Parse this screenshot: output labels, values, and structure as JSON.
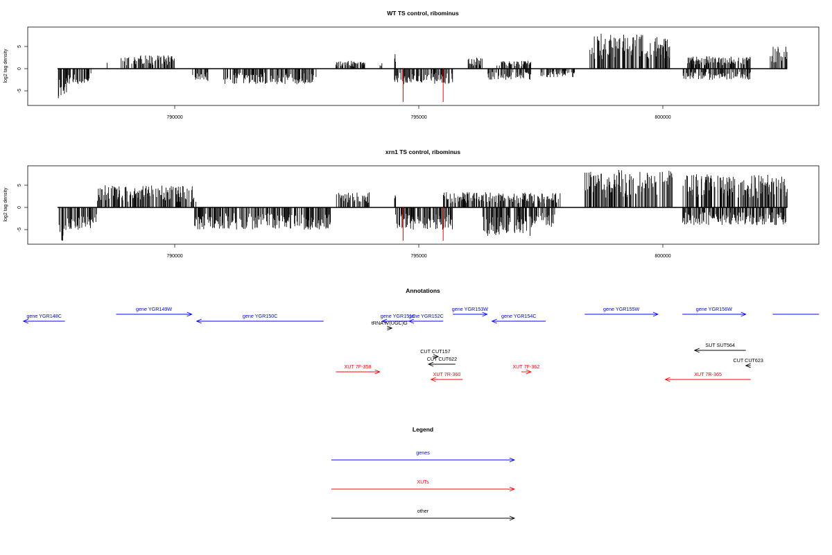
{
  "chart_data": [
    {
      "type": "bar",
      "title": "WT TS control, ribominus",
      "ylabel": "log2 tag density",
      "xlim": [
        786600,
        803200
      ],
      "ylim": [
        -8.5,
        9.5
      ],
      "x_ticks": [
        790000,
        795000,
        800000
      ],
      "y_ticks": [
        5,
        0,
        -5
      ],
      "x_tick_labels": [
        "790000",
        "795000",
        "800000"
      ],
      "y_tick_labels": [
        "5",
        "0",
        "-5"
      ],
      "plus_strand": [
        {
          "start": 788600,
          "end": 788620,
          "max": 2.5
        },
        {
          "start": 788900,
          "end": 790000,
          "max": 3.0
        },
        {
          "start": 793300,
          "end": 793900,
          "max": 1.8
        },
        {
          "start": 794200,
          "end": 794250,
          "max": 1.5
        },
        {
          "start": 794500,
          "end": 794530,
          "max": 4.0
        },
        {
          "start": 796000,
          "end": 796300,
          "max": 2.5
        },
        {
          "start": 796600,
          "end": 797300,
          "max": 1.8
        },
        {
          "start": 798500,
          "end": 800150,
          "max": 8.0
        },
        {
          "start": 800500,
          "end": 801800,
          "max": 2.8
        },
        {
          "start": 802200,
          "end": 802550,
          "max": 5.0
        }
      ],
      "minus_strand": [
        {
          "start": 787600,
          "end": 787800,
          "max": 7.0
        },
        {
          "start": 787800,
          "end": 788300,
          "max": 3.5
        },
        {
          "start": 790350,
          "end": 790700,
          "max": 2.8
        },
        {
          "start": 791000,
          "end": 792900,
          "max": 3.5
        },
        {
          "start": 794500,
          "end": 795700,
          "max": 3.5
        },
        {
          "start": 796400,
          "end": 797300,
          "max": 2.5
        },
        {
          "start": 797500,
          "end": 798200,
          "max": 2.0
        },
        {
          "start": 800400,
          "end": 801800,
          "max": 2.5
        }
      ],
      "red_lines": [
        {
          "x": 794680,
          "depth": -7.5
        },
        {
          "x": 795500,
          "depth": -7.5
        }
      ]
    },
    {
      "type": "bar",
      "title": "xrn1 TS control, ribominus",
      "ylabel": "log2 tag density",
      "xlim": [
        786600,
        803200
      ],
      "ylim": [
        -8.5,
        9.5
      ],
      "x_ticks": [
        790000,
        795000,
        800000
      ],
      "y_ticks": [
        5,
        0,
        -5
      ],
      "x_tick_labels": [
        "790000",
        "795000",
        "800000"
      ],
      "y_tick_labels": [
        "5",
        "0",
        "-5"
      ],
      "plus_strand": [
        {
          "start": 788400,
          "end": 790450,
          "max": 5.0
        },
        {
          "start": 793300,
          "end": 794000,
          "max": 3.5
        },
        {
          "start": 794500,
          "end": 794530,
          "max": 4.5
        },
        {
          "start": 795500,
          "end": 797900,
          "max": 3.5
        },
        {
          "start": 798400,
          "end": 800200,
          "max": 8.5
        },
        {
          "start": 800400,
          "end": 802550,
          "max": 7.5
        }
      ],
      "minus_strand": [
        {
          "start": 787600,
          "end": 787800,
          "max": 7.5
        },
        {
          "start": 787800,
          "end": 788400,
          "max": 5.0
        },
        {
          "start": 790400,
          "end": 793200,
          "max": 5.0
        },
        {
          "start": 794500,
          "end": 795700,
          "max": 5.0
        },
        {
          "start": 796300,
          "end": 797300,
          "max": 6.5
        },
        {
          "start": 797300,
          "end": 797800,
          "max": 4.5
        },
        {
          "start": 800400,
          "end": 802550,
          "max": 4.0
        }
      ],
      "red_lines": [
        {
          "x": 794680,
          "depth": -7.5
        },
        {
          "x": 795500,
          "depth": -7.5
        }
      ]
    }
  ],
  "annotations": {
    "title": "Annotations",
    "xlim": [
      786600,
      803200
    ],
    "colors": {
      "gene": "#0000ff",
      "xut": "#ff0000",
      "other": "#000000"
    },
    "items": [
      {
        "label": "gene YGR148C",
        "start": 786900,
        "end": 787750,
        "dir": "left",
        "cls": "gene",
        "row": 1
      },
      {
        "label": "gene YGR149W",
        "start": 788800,
        "end": 790350,
        "dir": "right",
        "cls": "gene",
        "row": 0
      },
      {
        "label": "gene YGR150C",
        "start": 790450,
        "end": 793050,
        "dir": "left",
        "cls": "gene",
        "row": 1
      },
      {
        "label": "gene YGR151C",
        "start": 794250,
        "end": 794900,
        "dir": "left",
        "cls": "gene",
        "row": 1
      },
      {
        "label": "gene YGR152C",
        "start": 794800,
        "end": 795500,
        "dir": "left",
        "cls": "gene",
        "row": 1
      },
      {
        "label": "gene YGR153W",
        "start": 795700,
        "end": 796400,
        "dir": "right",
        "cls": "gene",
        "row": 0
      },
      {
        "label": "gene YGR154C",
        "start": 796500,
        "end": 797600,
        "dir": "left",
        "cls": "gene",
        "row": 1
      },
      {
        "label": "gene YGR155W",
        "start": 798400,
        "end": 799900,
        "dir": "right",
        "cls": "gene",
        "row": 0
      },
      {
        "label": "gene YGR156W",
        "start": 800400,
        "end": 801700,
        "dir": "right",
        "cls": "gene",
        "row": 0
      },
      {
        "label": "",
        "start": 802250,
        "end": 803200,
        "dir": "none",
        "cls": "gene",
        "row": 0
      },
      {
        "label": "tRNA tV(UGC)G",
        "start": 794350,
        "end": 794450,
        "dir": "right",
        "cls": "other",
        "row": 2
      },
      {
        "label": "CUT CUT157",
        "start": 795280,
        "end": 795400,
        "dir": "right",
        "cls": "other",
        "row": 3
      },
      {
        "label": "CUT CUT622",
        "start": 795200,
        "end": 795750,
        "dir": "left",
        "cls": "other",
        "row": 4
      },
      {
        "label": "SUT SUT564",
        "start": 800650,
        "end": 801700,
        "dir": "left",
        "cls": "other",
        "row": 5
      },
      {
        "label": "CUT CUT623",
        "start": 801700,
        "end": 801800,
        "dir": "left",
        "cls": "other",
        "row": 6
      },
      {
        "label": "XUT 7F-358",
        "start": 793300,
        "end": 794200,
        "dir": "right",
        "cls": "xut",
        "row": 7
      },
      {
        "label": "XUT 7R-360",
        "start": 795250,
        "end": 795900,
        "dir": "left",
        "cls": "xut",
        "row": 8
      },
      {
        "label": "XUT 7F-362",
        "start": 797100,
        "end": 797300,
        "dir": "right",
        "cls": "xut",
        "row": 7
      },
      {
        "label": "XUT 7R-365",
        "start": 800050,
        "end": 801800,
        "dir": "left",
        "cls": "xut",
        "row": 8
      }
    ]
  },
  "legend": {
    "title": "Legend",
    "items": [
      {
        "label": "genes",
        "cls": "gene"
      },
      {
        "label": "XUTs",
        "cls": "xut"
      },
      {
        "label": "other",
        "cls": "other"
      }
    ]
  }
}
